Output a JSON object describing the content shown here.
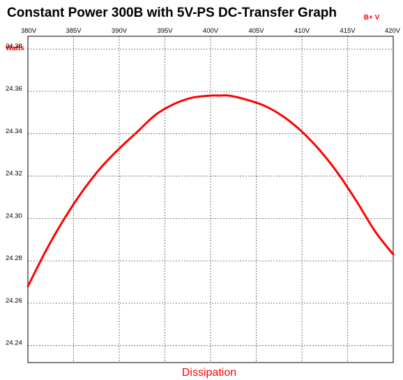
{
  "chart_data": {
    "type": "line",
    "title": "Constant Power 300B with 5V-PS DC-Transfer Graph",
    "xlabel": "B+ V",
    "ylabel": "Watts",
    "bottom_label": "Dissipation",
    "x_ticks": [
      "380V",
      "385V",
      "390V",
      "395V",
      "400V",
      "405V",
      "410V",
      "415V",
      "420V"
    ],
    "y_ticks": [
      "24.38",
      "24.36",
      "24.34",
      "24.32",
      "24.30",
      "24.28",
      "24.26",
      "24.24"
    ],
    "xlim": [
      380,
      420
    ],
    "ylim": [
      24.232,
      24.386
    ],
    "grid": true,
    "line_color": "#ff0000",
    "label_color": "#ff0000",
    "series": [
      {
        "x": [
          380,
          382,
          384,
          386,
          388,
          390,
          392,
          394,
          396,
          398,
          400,
          401,
          402,
          404,
          406,
          408,
          410,
          412,
          414,
          416,
          418,
          420
        ],
        "y": [
          24.268,
          24.285,
          24.3,
          24.313,
          24.324,
          24.333,
          24.341,
          24.349,
          24.354,
          24.357,
          24.358,
          24.358,
          24.358,
          24.356,
          24.353,
          24.348,
          24.341,
          24.332,
          24.321,
          24.308,
          24.294,
          24.283
        ]
      }
    ]
  }
}
